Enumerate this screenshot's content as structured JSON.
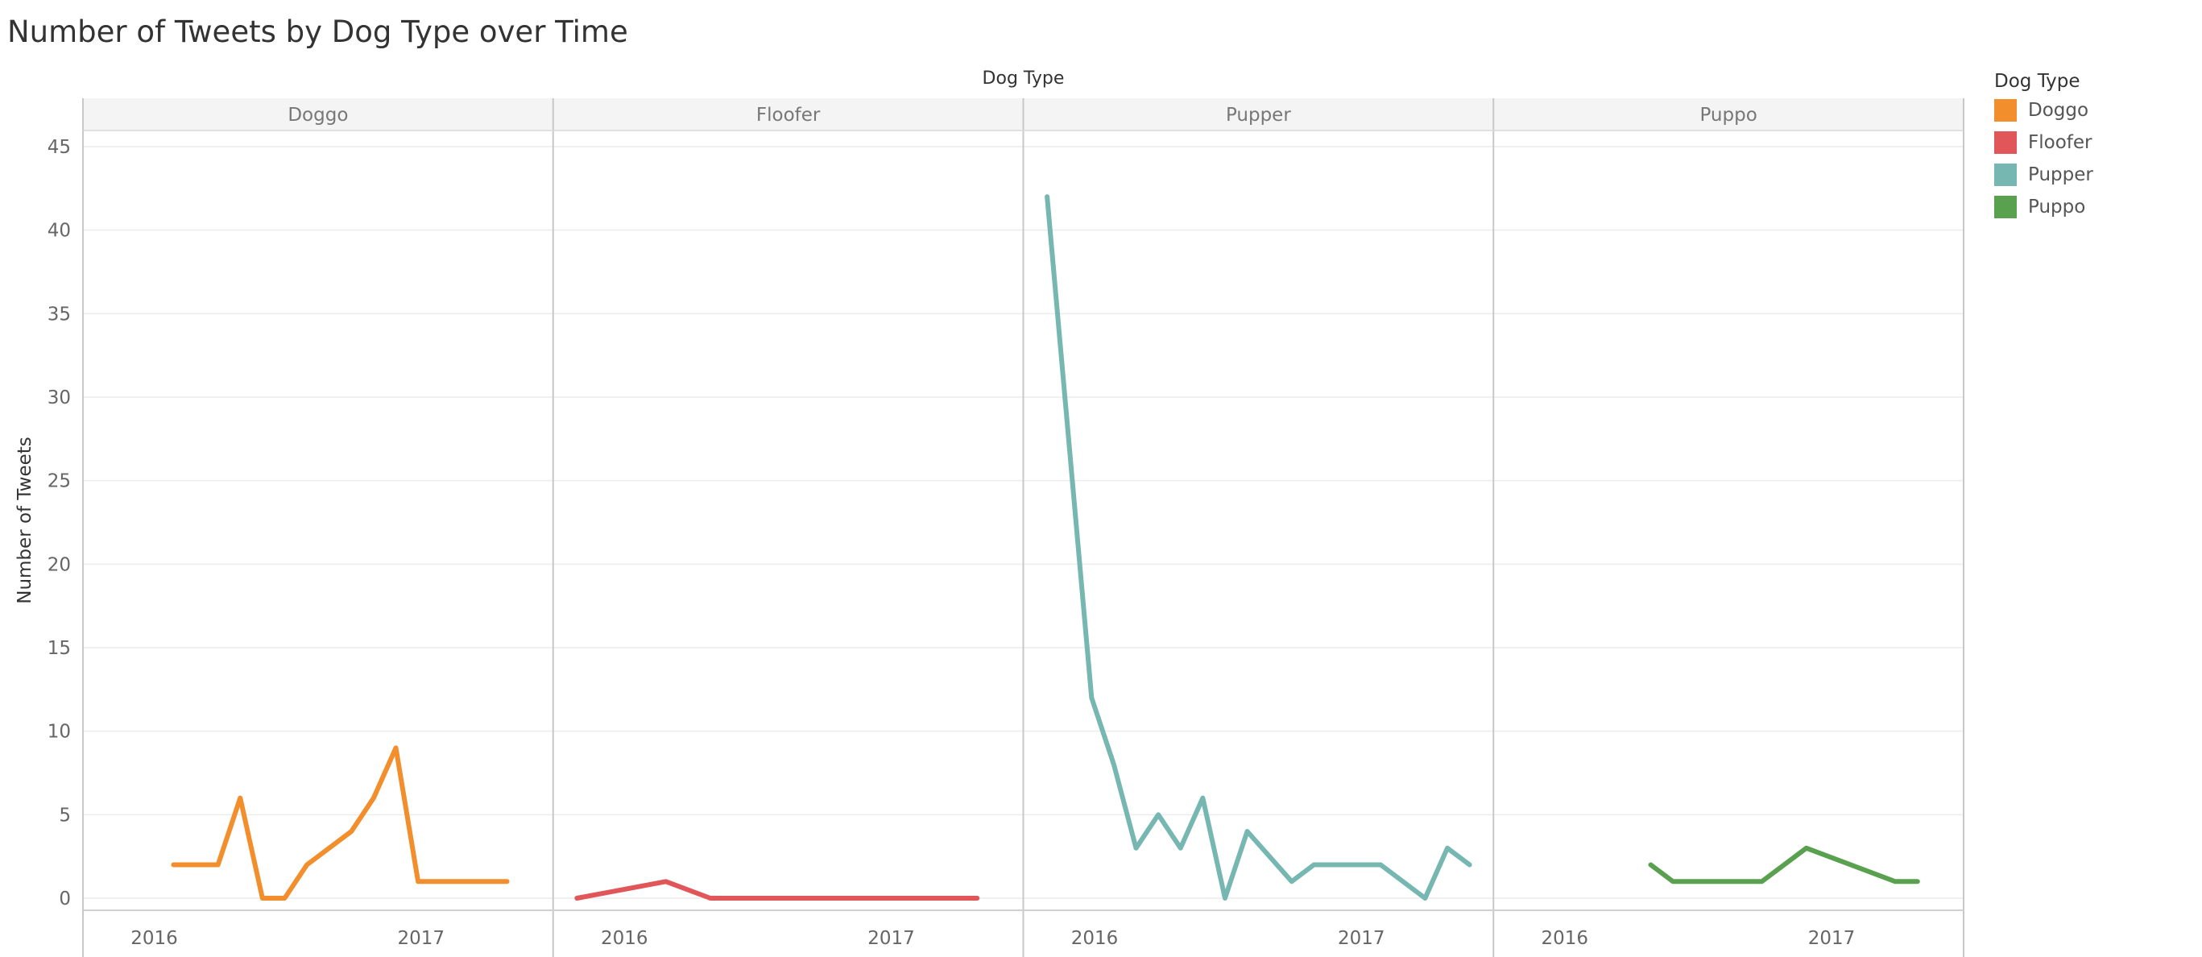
{
  "chart_data": {
    "type": "line",
    "title": "Number of Tweets by Dog Type over Time",
    "facet_label": "Dog Type",
    "ylabel": "Number of Tweets",
    "ylim": [
      0,
      45
    ],
    "yticks": [
      0,
      5,
      10,
      15,
      20,
      25,
      30,
      35,
      40,
      45
    ],
    "xlim": [
      "2015-11",
      "2017-08"
    ],
    "xticks": [
      {
        "value": "2016-01",
        "label": "2016"
      },
      {
        "value": "2017-01",
        "label": "2017"
      }
    ],
    "grid": true,
    "legend": {
      "title": "Dog Type",
      "placement": "right"
    },
    "series": [
      {
        "name": "Doggo",
        "color": "#F28E2B",
        "points": [
          {
            "x": "2016-03",
            "y": 2
          },
          {
            "x": "2016-05",
            "y": 2
          },
          {
            "x": "2016-06",
            "y": 6
          },
          {
            "x": "2016-07",
            "y": 0
          },
          {
            "x": "2016-08",
            "y": 0
          },
          {
            "x": "2016-09",
            "y": 2
          },
          {
            "x": "2016-11",
            "y": 4
          },
          {
            "x": "2016-12",
            "y": 6
          },
          {
            "x": "2017-01",
            "y": 9
          },
          {
            "x": "2017-02",
            "y": 1
          },
          {
            "x": "2017-06",
            "y": 1
          }
        ]
      },
      {
        "name": "Floofer",
        "color": "#E15759",
        "points": [
          {
            "x": "2015-12",
            "y": 0
          },
          {
            "x": "2016-04",
            "y": 1
          },
          {
            "x": "2016-06",
            "y": 0
          },
          {
            "x": "2017-06",
            "y": 0
          }
        ]
      },
      {
        "name": "Pupper",
        "color": "#76B7B2",
        "points": [
          {
            "x": "2015-12",
            "y": 42
          },
          {
            "x": "2016-02",
            "y": 12
          },
          {
            "x": "2016-03",
            "y": 8
          },
          {
            "x": "2016-04",
            "y": 3
          },
          {
            "x": "2016-05",
            "y": 5
          },
          {
            "x": "2016-06",
            "y": 3
          },
          {
            "x": "2016-07",
            "y": 6
          },
          {
            "x": "2016-08",
            "y": 0
          },
          {
            "x": "2016-09",
            "y": 4
          },
          {
            "x": "2016-11",
            "y": 1
          },
          {
            "x": "2016-12",
            "y": 2
          },
          {
            "x": "2017-03",
            "y": 2
          },
          {
            "x": "2017-05",
            "y": 0
          },
          {
            "x": "2017-06",
            "y": 3
          },
          {
            "x": "2017-07",
            "y": 2
          }
        ]
      },
      {
        "name": "Puppo",
        "color": "#59A14F",
        "points": [
          {
            "x": "2016-06",
            "y": 2
          },
          {
            "x": "2016-07",
            "y": 1
          },
          {
            "x": "2016-11",
            "y": 1
          },
          {
            "x": "2017-01",
            "y": 3
          },
          {
            "x": "2017-05",
            "y": 1
          },
          {
            "x": "2017-06",
            "y": 1
          }
        ]
      }
    ]
  }
}
